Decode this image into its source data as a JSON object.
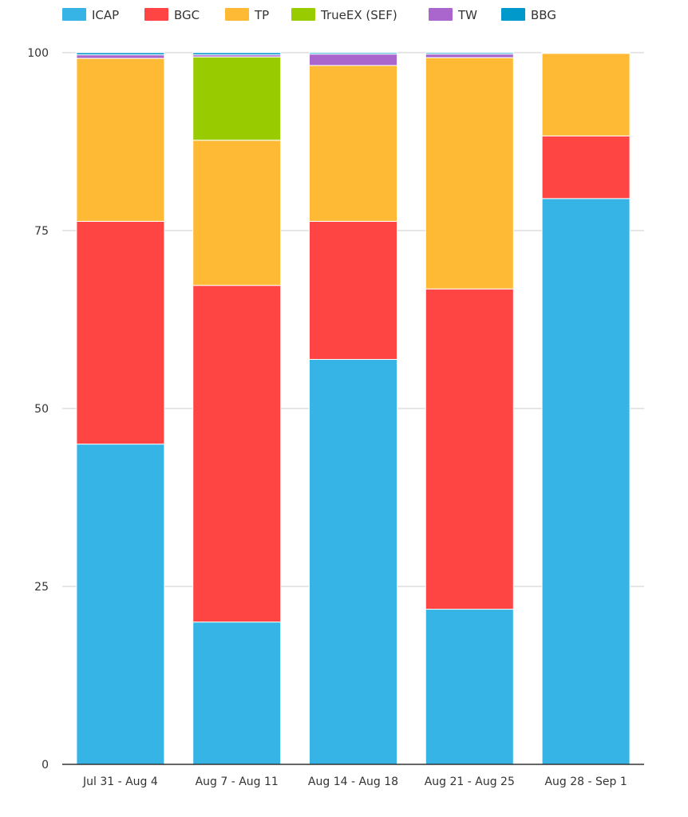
{
  "chart_data": {
    "type": "bar",
    "stacked": true,
    "title": "",
    "xlabel": "",
    "ylabel": "",
    "ylim": [
      0,
      100
    ],
    "yticks": [
      0,
      25,
      50,
      75,
      100
    ],
    "grid": true,
    "legend_position": "top",
    "categories": [
      "Jul 31 - Aug 4",
      "Aug 7 - Aug 11",
      "Aug 14 - Aug 18",
      "Aug 21 - Aug 25",
      "Aug 28 - Sep 1"
    ],
    "series": [
      {
        "name": "ICAP",
        "color": "#35b4e5",
        "values": [
          45.0,
          20.0,
          56.9,
          21.8,
          79.5
        ]
      },
      {
        "name": "BGC",
        "color": "#ff4444",
        "values": [
          31.3,
          47.3,
          19.4,
          45.0,
          8.8
        ]
      },
      {
        "name": "TP",
        "color": "#ffba35",
        "values": [
          22.9,
          20.4,
          21.9,
          32.5,
          11.6
        ]
      },
      {
        "name": "TrueEX (SEF)",
        "color": "#99cc00",
        "values": [
          0.0,
          11.7,
          0.0,
          0.0,
          0.0
        ]
      },
      {
        "name": "TW",
        "color": "#aa66cc",
        "values": [
          0.5,
          0.3,
          1.6,
          0.5,
          0.0
        ]
      },
      {
        "name": "BBG",
        "color": "#0099cc",
        "values": [
          0.3,
          0.3,
          0.2,
          0.2,
          0.1
        ]
      }
    ]
  }
}
